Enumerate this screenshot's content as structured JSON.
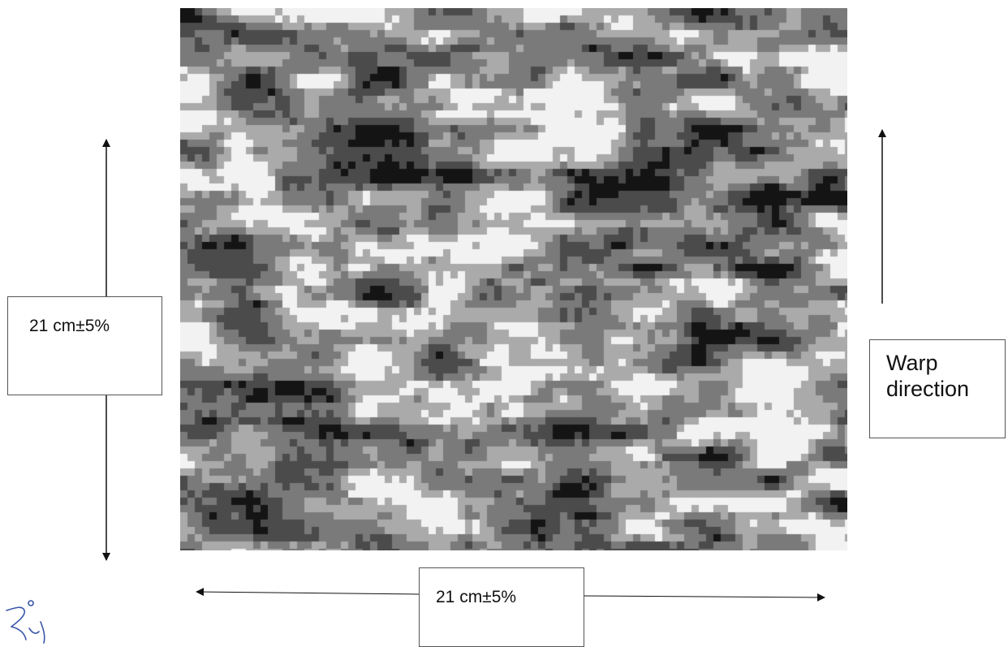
{
  "figure": {
    "pattern": {
      "icon": "digital-camouflage-pattern",
      "colors": {
        "white": "#f2f2f2",
        "light_gray": "#aaaaaa",
        "mid_gray": "#7a7a7a",
        "dark_gray": "#4b4b4b",
        "black": "#141414"
      }
    },
    "vertical_dimension": {
      "label": "21 cm±5%"
    },
    "horizontal_dimension": {
      "label": "21 cm±5%"
    },
    "warp_direction": {
      "line1": "Warp",
      "line2": "direction"
    },
    "signature": {
      "icon": "handwritten-signature-mark"
    }
  }
}
